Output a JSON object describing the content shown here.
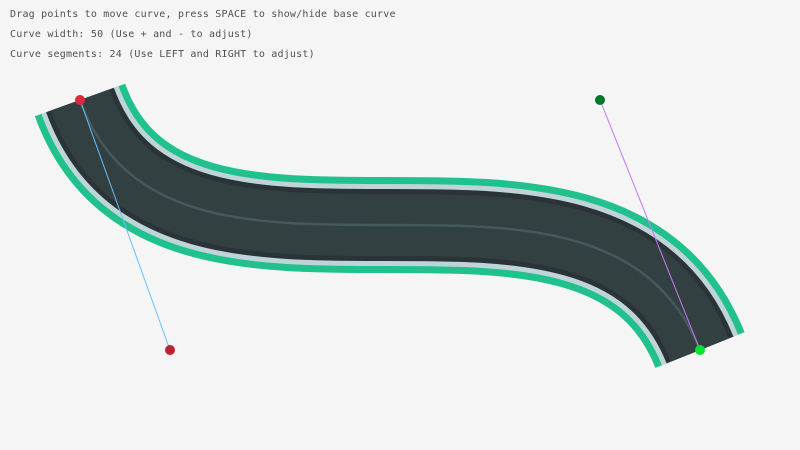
{
  "instructions": {
    "line1": "Drag points to move curve, press SPACE to show/hide base curve",
    "line2": "Curve width: 50 (Use + and - to adjust)",
    "line3": "Curve segments: 24 (Use LEFT and RIGHT to adjust)"
  },
  "curve": {
    "width": 50,
    "segments": 24,
    "start": [
      80,
      100
    ],
    "start_tangent": [
      170,
      350
    ],
    "end_tangent": [
      600,
      100
    ],
    "end": [
      700,
      350
    ]
  },
  "colors": {
    "background": "#f5f5f5",
    "road_border": "#21c18d",
    "road_edge_light": "#bfd4d8",
    "road_edge_dark": "#2a3436",
    "road": "#334042",
    "lane_line": "#46585a",
    "start_point": "#e0283c",
    "start_tangent_point": "#be2033",
    "end_tangent_point": "#00752c",
    "end_point": "#00e430",
    "start_tangent_line": "#66bfff",
    "end_tangent_line": "#c87aff"
  }
}
